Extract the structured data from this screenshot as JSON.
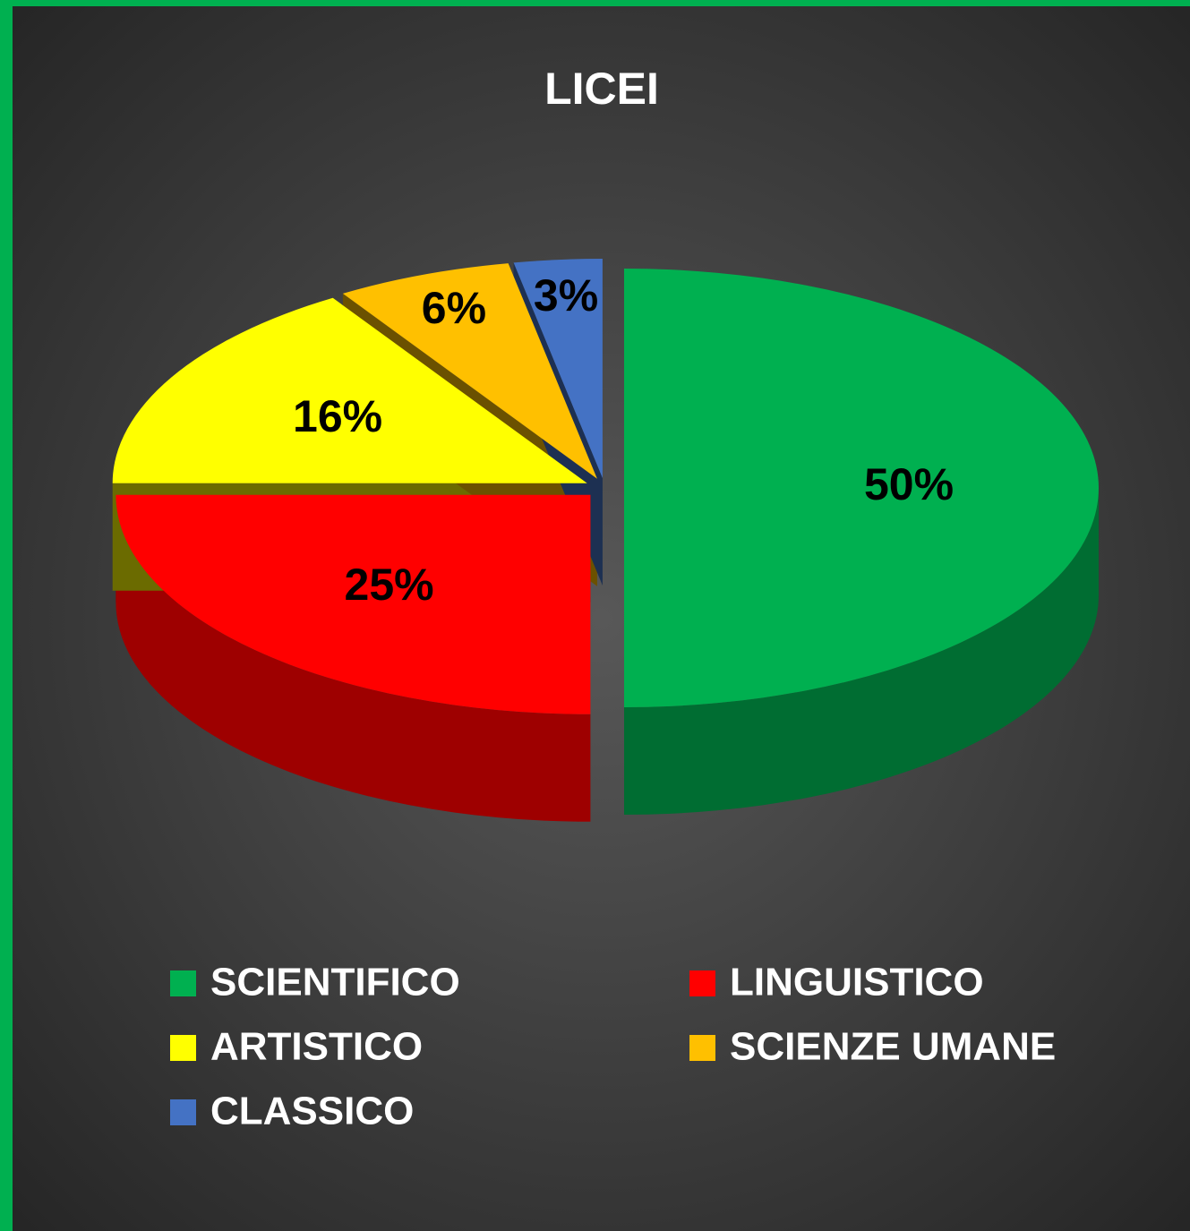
{
  "chart_data": {
    "type": "pie3d",
    "title": "LICEI",
    "categories": [
      "SCIENTIFICO",
      "LINGUISTICO",
      "ARTISTICO",
      "SCIENZE UMANE",
      "CLASSICO"
    ],
    "values": [
      50,
      25,
      16,
      6,
      3
    ],
    "value_labels": [
      "50%",
      "25%",
      "16%",
      "6%",
      "3%"
    ],
    "colors": [
      "#00b050",
      "#ff0000",
      "#ffff00",
      "#ffc000",
      "#4472c4"
    ],
    "legend": "bottom"
  }
}
